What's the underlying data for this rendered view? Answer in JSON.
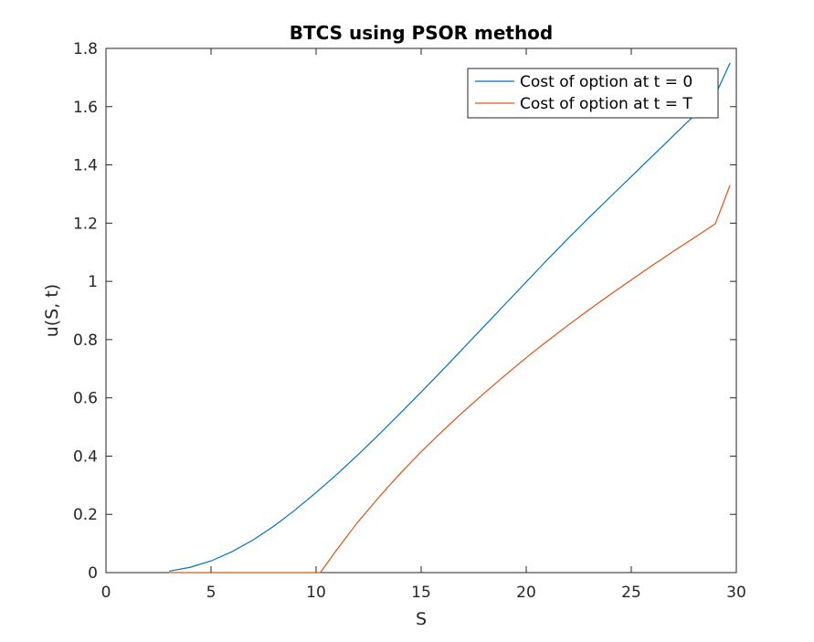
{
  "chart_data": {
    "type": "line",
    "title": "BTCS using PSOR method",
    "xlabel": "S",
    "ylabel": "u(S, t)",
    "xlim": [
      0,
      30
    ],
    "ylim": [
      0,
      1.8
    ],
    "xticks": [
      0,
      5,
      10,
      15,
      20,
      25,
      30
    ],
    "yticks": [
      0,
      0.2,
      0.4,
      0.6,
      0.8,
      1,
      1.2,
      1.4,
      1.6,
      1.8
    ],
    "xtick_labels": [
      "0",
      "5",
      "10",
      "15",
      "20",
      "25",
      "30"
    ],
    "ytick_labels": [
      "0",
      "0.2",
      "0.4",
      "0.6",
      "0.8",
      "1",
      "1.2",
      "1.4",
      "1.6",
      "1.8"
    ],
    "grid": false,
    "legend_position": "top-right",
    "series": [
      {
        "name": "Cost of option at t = 0",
        "color": "#0072BD",
        "x": [
          3,
          4,
          5,
          6,
          7,
          8,
          9,
          10,
          11,
          12,
          13,
          14,
          15,
          16,
          17,
          18,
          19,
          20,
          21,
          22,
          23,
          24,
          25,
          26,
          27,
          28,
          29,
          29.7
        ],
        "y": [
          0.005,
          0.018,
          0.04,
          0.072,
          0.112,
          0.16,
          0.215,
          0.275,
          0.338,
          0.405,
          0.475,
          0.547,
          0.62,
          0.694,
          0.77,
          0.846,
          0.922,
          0.998,
          1.074,
          1.148,
          1.22,
          1.29,
          1.36,
          1.43,
          1.5,
          1.57,
          1.64,
          1.75
        ]
      },
      {
        "name": "Cost of option at t = T",
        "color": "#D95319",
        "x": [
          3,
          4,
          5,
          6,
          7,
          8,
          9,
          10,
          10.2,
          11,
          12,
          13,
          14,
          15,
          16,
          17,
          18,
          19,
          20,
          21,
          22,
          23,
          24,
          25,
          26,
          27,
          28,
          29,
          29.7
        ],
        "y": [
          0,
          0,
          0,
          0,
          0,
          0,
          0,
          0,
          0,
          0.08,
          0.175,
          0.26,
          0.34,
          0.415,
          0.485,
          0.552,
          0.616,
          0.678,
          0.738,
          0.795,
          0.85,
          0.903,
          0.955,
          1.005,
          1.055,
          1.103,
          1.15,
          1.198,
          1.33
        ]
      }
    ]
  }
}
